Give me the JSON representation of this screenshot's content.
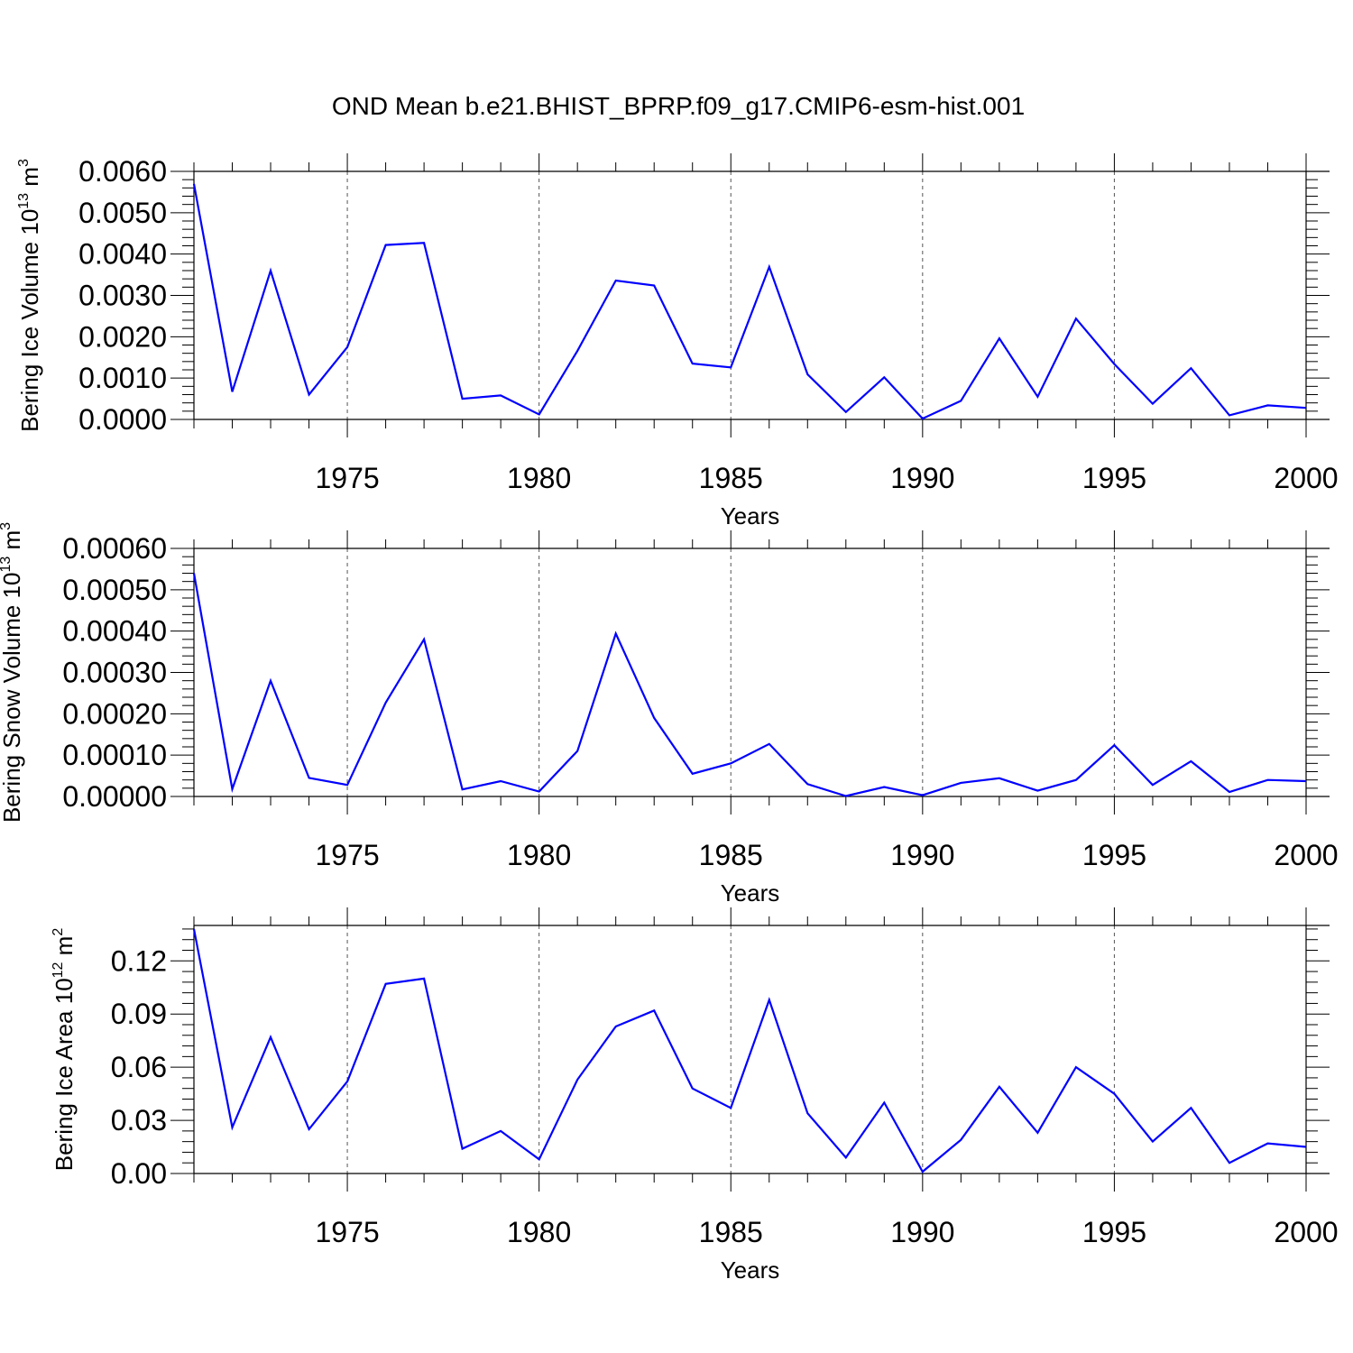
{
  "title": "OND Mean b.e21.BHIST_BPRP.f09_g17.CMIP6-esm-hist.001",
  "colors": {
    "line": "#0000ff",
    "axis": "#000000",
    "grid": "#555555"
  },
  "chart_data": [
    {
      "type": "line",
      "xlabel": "Years",
      "ylabel_text": "Bering Ice Volume 10",
      "ylabel_exp": "13",
      "ylabel_unit": " m",
      "ylabel_unit_exp": "3",
      "xlim": [
        1971,
        2000
      ],
      "ylim": [
        0,
        0.006
      ],
      "yticks": [
        0,
        0.001,
        0.002,
        0.003,
        0.004,
        0.005,
        0.006
      ],
      "ytick_labels": [
        "0.0000",
        "0.0010",
        "0.0020",
        "0.0030",
        "0.0040",
        "0.0050",
        "0.0060"
      ],
      "xticks": [
        1975,
        1980,
        1985,
        1990,
        1995,
        2000
      ],
      "xtick_labels": [
        "1975",
        "1980",
        "1985",
        "1990",
        "1995",
        "2000"
      ],
      "grid": "vertical-dashed",
      "x": [
        1971,
        1972,
        1973,
        1974,
        1975,
        1976,
        1977,
        1978,
        1979,
        1980,
        1981,
        1982,
        1983,
        1984,
        1985,
        1986,
        1987,
        1988,
        1989,
        1990,
        1991,
        1992,
        1993,
        1994,
        1995,
        1996,
        1997,
        1998,
        1999,
        2000
      ],
      "values": [
        0.0057,
        0.00067,
        0.0036,
        0.0006,
        0.00175,
        0.00422,
        0.00427,
        0.0005,
        0.00058,
        0.00012,
        0.00166,
        0.00336,
        0.00324,
        0.00135,
        0.00126,
        0.00369,
        0.00109,
        0.00018,
        0.00102,
        2e-05,
        0.00045,
        0.00196,
        0.00055,
        0.00244,
        0.00134,
        0.00038,
        0.00124,
        0.0001,
        0.00034,
        0.00028
      ]
    },
    {
      "type": "line",
      "xlabel": "Years",
      "ylabel_text": "Bering Snow Volume 10",
      "ylabel_exp": "13",
      "ylabel_unit": " m",
      "ylabel_unit_exp": "3",
      "xlim": [
        1971,
        2000
      ],
      "ylim": [
        0,
        0.0006
      ],
      "yticks": [
        0,
        0.0001,
        0.0002,
        0.0003,
        0.0004,
        0.0005,
        0.0006
      ],
      "ytick_labels": [
        "0.00000",
        "0.00010",
        "0.00020",
        "0.00030",
        "0.00040",
        "0.00050",
        "0.00060"
      ],
      "xticks": [
        1975,
        1980,
        1985,
        1990,
        1995,
        2000
      ],
      "xtick_labels": [
        "1975",
        "1980",
        "1985",
        "1990",
        "1995",
        "2000"
      ],
      "grid": "vertical-dashed",
      "x": [
        1971,
        1972,
        1973,
        1974,
        1975,
        1976,
        1977,
        1978,
        1979,
        1980,
        1981,
        1982,
        1983,
        1984,
        1985,
        1986,
        1987,
        1988,
        1989,
        1990,
        1991,
        1992,
        1993,
        1994,
        1995,
        1996,
        1997,
        1998,
        1999,
        2000
      ],
      "values": [
        0.00054,
        1.8e-05,
        0.00028,
        4.5e-05,
        2.8e-05,
        0.000227,
        0.00038,
        1.7e-05,
        3.7e-05,
        1.2e-05,
        0.00011,
        0.000394,
        0.00019,
        5.5e-05,
        8e-05,
        0.000127,
        3e-05,
        1e-06,
        2.3e-05,
        3e-06,
        3.3e-05,
        4.4e-05,
        1.4e-05,
        4e-05,
        0.000124,
        2.8e-05,
        8.5e-05,
        1.1e-05,
        4e-05,
        3.7e-05
      ]
    },
    {
      "type": "line",
      "xlabel": "Years",
      "ylabel_text": "Bering Ice Area 10",
      "ylabel_exp": "12",
      "ylabel_unit": " m",
      "ylabel_unit_exp": "2",
      "xlim": [
        1971,
        2000
      ],
      "ylim": [
        0,
        0.14
      ],
      "yticks": [
        0,
        0.03,
        0.06,
        0.09,
        0.12
      ],
      "ytick_labels": [
        "0.00",
        "0.03",
        "0.06",
        "0.09",
        "0.12"
      ],
      "xticks": [
        1975,
        1980,
        1985,
        1990,
        1995,
        2000
      ],
      "xtick_labels": [
        "1975",
        "1980",
        "1985",
        "1990",
        "1995",
        "2000"
      ],
      "grid": "vertical-dashed",
      "x": [
        1971,
        1972,
        1973,
        1974,
        1975,
        1976,
        1977,
        1978,
        1979,
        1980,
        1981,
        1982,
        1983,
        1984,
        1985,
        1986,
        1987,
        1988,
        1989,
        1990,
        1991,
        1992,
        1993,
        1994,
        1995,
        1996,
        1997,
        1998,
        1999,
        2000
      ],
      "values": [
        0.138,
        0.026,
        0.077,
        0.025,
        0.052,
        0.107,
        0.11,
        0.014,
        0.024,
        0.008,
        0.053,
        0.083,
        0.092,
        0.048,
        0.037,
        0.098,
        0.034,
        0.009,
        0.04,
        0.001,
        0.019,
        0.049,
        0.023,
        0.06,
        0.045,
        0.018,
        0.037,
        0.006,
        0.017,
        0.015
      ]
    }
  ]
}
